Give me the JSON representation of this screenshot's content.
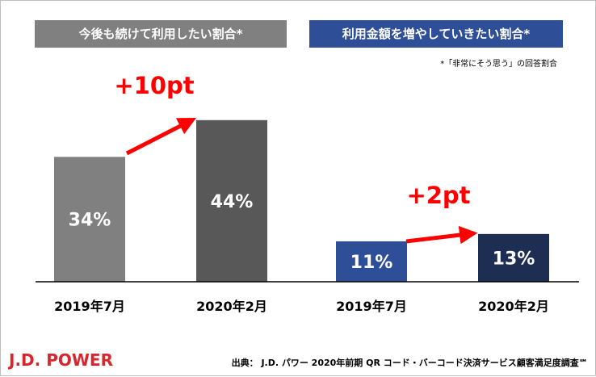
{
  "colors": {
    "left_title_bg": "#808080",
    "right_title_bg": "#2e4f98",
    "bar_2019_left": "#808080",
    "bar_2020_left": "#585858",
    "bar_2019_right": "#2e4f98",
    "bar_2020_right": "#1e2d52",
    "arrow": "#ff0000",
    "brand": "#d9262c"
  },
  "note": "*「非常にそう思う」の回答割合",
  "brand": "J.D. POWER",
  "source": "出典： J.D. パワー 2020年前期 QR コード・バーコード決済サービス顧客満足度調査℠",
  "chart_data": [
    {
      "type": "bar",
      "title": "今後も続けて利用したい割合*",
      "categories": [
        "2019年7月",
        "2020年2月"
      ],
      "values": [
        34,
        44
      ],
      "value_labels": [
        "34%",
        "44%"
      ],
      "annotation": "+10pt",
      "ylim": [
        0,
        50
      ],
      "grid": false
    },
    {
      "type": "bar",
      "title": "利用金額を増やしていきたい割合*",
      "categories": [
        "2019年7月",
        "2020年2月"
      ],
      "values": [
        11,
        13
      ],
      "value_labels": [
        "11%",
        "13%"
      ],
      "annotation": "+2pt",
      "ylim": [
        0,
        50
      ],
      "grid": false
    }
  ]
}
